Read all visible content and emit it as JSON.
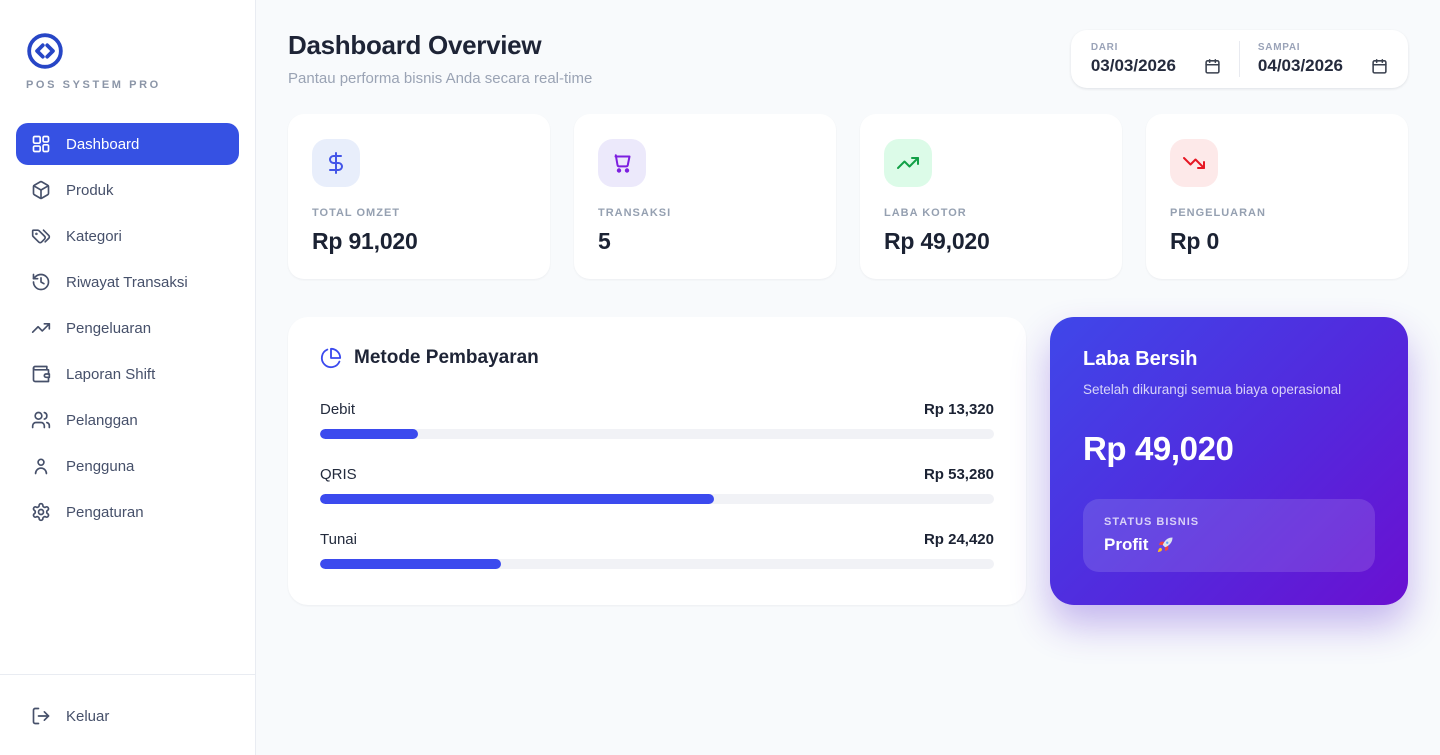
{
  "app": {
    "brand": "POS SYSTEM PRO"
  },
  "sidebar": {
    "items": [
      {
        "label": "Dashboard",
        "icon": "dashboard-icon",
        "active": true
      },
      {
        "label": "Produk",
        "icon": "package-icon",
        "active": false
      },
      {
        "label": "Kategori",
        "icon": "tags-icon",
        "active": false
      },
      {
        "label": "Riwayat Transaksi",
        "icon": "history-icon",
        "active": false
      },
      {
        "label": "Pengeluaran",
        "icon": "trending-up-icon",
        "active": false
      },
      {
        "label": "Laporan Shift",
        "icon": "wallet-icon",
        "active": false
      },
      {
        "label": "Pelanggan",
        "icon": "users-icon",
        "active": false
      },
      {
        "label": "Pengguna",
        "icon": "user-icon",
        "active": false
      },
      {
        "label": "Pengaturan",
        "icon": "gear-icon",
        "active": false
      }
    ],
    "logout_label": "Keluar"
  },
  "header": {
    "title": "Dashboard Overview",
    "subtitle": "Pantau performa bisnis Anda secara real-time",
    "date_range": {
      "from_label": "DARI",
      "from_value": "03/03/2026",
      "to_label": "SAMPAI",
      "to_value": "04/03/2026"
    }
  },
  "stats": [
    {
      "label": "TOTAL OMZET",
      "value": "Rp 91,020",
      "icon": "dollar-icon",
      "accent": "#4355e8",
      "accent_bg": "#e8eefb"
    },
    {
      "label": "TRANSAKSI",
      "value": "5",
      "icon": "cart-icon",
      "accent": "#7d1fe0",
      "accent_bg": "#ece9fb"
    },
    {
      "label": "LABA KOTOR",
      "value": "Rp 49,020",
      "icon": "trend-up-icon",
      "accent": "#13a047",
      "accent_bg": "#dcfbe8"
    },
    {
      "label": "PENGELUARAN",
      "value": "Rp 0",
      "icon": "trend-down-icon",
      "accent": "#e61724",
      "accent_bg": "#fde9e9"
    }
  ],
  "chart_data": {
    "type": "bar",
    "title": "Metode Pembayaran",
    "categories": [
      "Debit",
      "QRIS",
      "Tunai"
    ],
    "values": [
      13320,
      53280,
      24420
    ],
    "value_labels": [
      "Rp 13,320",
      "Rp 53,280",
      "Rp 24,420"
    ],
    "total": 91020,
    "percentages": [
      14.6,
      58.5,
      26.8
    ],
    "bar_color": "#3b4aee",
    "track_color": "#f1f2f6",
    "orientation": "horizontal"
  },
  "profit_card": {
    "title": "Laba Bersih",
    "subtitle": "Setelah dikurangi semua biaya operasional",
    "value": "Rp 49,020",
    "status_label": "STATUS BISNIS",
    "status_value": "Profit 🚀",
    "status_value_text": "Profit",
    "gradient_from": "#3f47e9",
    "gradient_to": "#6a10d1"
  }
}
